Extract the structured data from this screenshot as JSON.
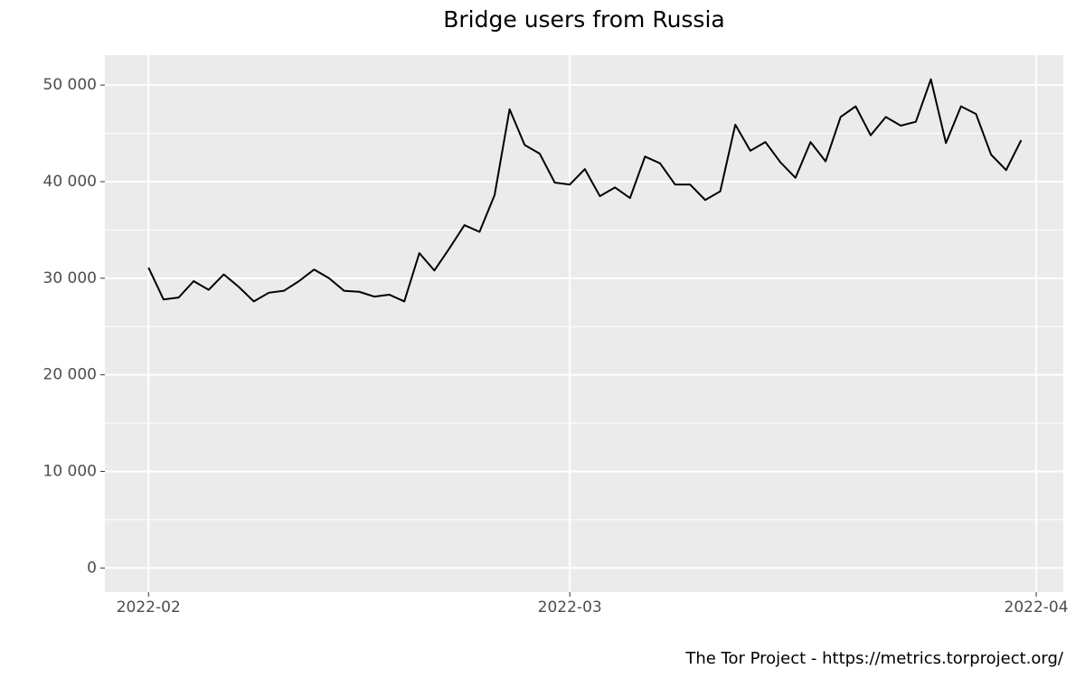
{
  "chart_data": {
    "type": "line",
    "title": "Bridge users from Russia",
    "caption": "The Tor Project - https://metrics.torproject.org/",
    "categories": [
      null,
      null,
      null,
      null,
      null,
      null,
      null,
      null,
      null,
      null,
      null,
      null,
      null,
      null,
      null,
      null,
      null,
      null,
      null,
      null,
      null,
      null,
      null,
      null,
      null,
      null,
      null,
      null,
      null,
      null,
      null,
      null,
      null,
      null,
      null,
      null,
      null,
      null,
      null,
      null,
      null,
      null,
      null,
      null,
      null,
      null,
      null,
      null,
      null,
      null,
      null,
      null,
      null,
      null,
      null,
      null,
      null,
      null,
      null
    ],
    "series": [
      {
        "name": "Bridge users",
        "color": "#000000",
        "values": [
          31100,
          27800,
          28000,
          29700,
          28800,
          30400,
          29100,
          27600,
          28500,
          28700,
          29700,
          30900,
          30000,
          28700,
          28600,
          28100,
          28300,
          27600,
          32600,
          30800,
          33100,
          35500,
          34800,
          38600,
          47500,
          43800,
          42900,
          39900,
          39700,
          41300,
          38500,
          39400,
          38300,
          42600,
          41900,
          39700,
          39700,
          38100,
          39000,
          45900,
          43200,
          44100,
          42000,
          40400,
          44100,
          42100,
          46700,
          47800,
          44800,
          46700,
          45800,
          46200,
          50600,
          44000,
          47800,
          47000,
          42800,
          41200,
          44300
        ]
      }
    ],
    "xlim": [
      -2.9,
      60.8
    ],
    "xticks": [
      {
        "value": 0,
        "label": "2022-02"
      },
      {
        "value": 28,
        "label": "2022-03"
      },
      {
        "value": 59,
        "label": "2022-04"
      }
    ],
    "ylim": [
      -2500,
      53100
    ],
    "yticks": [
      0,
      {
        "value": 10000,
        "label": "10 000"
      },
      {
        "value": 20000,
        "label": "20 000"
      },
      {
        "value": 30000,
        "label": "30 000"
      },
      {
        "value": 40000,
        "label": "40 000"
      },
      {
        "value": 50000,
        "label": "50 000"
      }
    ],
    "grid": true
  }
}
